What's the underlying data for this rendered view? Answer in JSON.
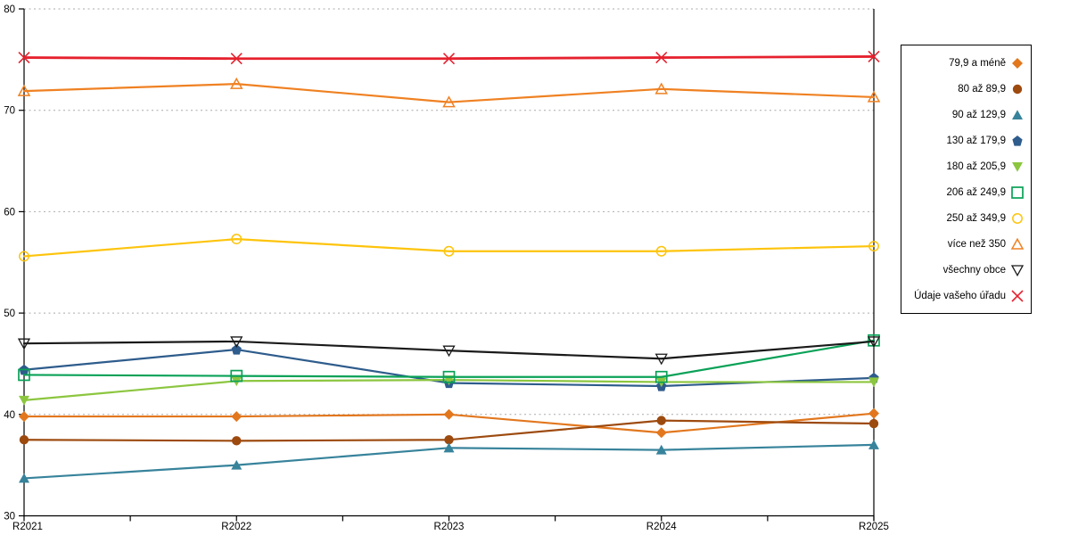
{
  "chart_data": {
    "type": "line",
    "title": "",
    "xlabel": "",
    "ylabel": "",
    "x_categories": [
      "R2021",
      "R2022",
      "R2023",
      "R2024",
      "R2025"
    ],
    "ylim": [
      30,
      80
    ],
    "y_ticks": [
      30,
      40,
      50,
      60,
      70,
      80
    ],
    "grid": "horizontal-dotted",
    "gridline_color": "#a9a9a9",
    "axis_color": "#000000",
    "legend_position": "right-outside",
    "series": [
      {
        "name": "79,9 a méně",
        "marker": "diamond-filled",
        "color": "#e2771e",
        "values": [
          39.8,
          39.8,
          40.0,
          38.2,
          40.1
        ]
      },
      {
        "name": "80 až 89,9",
        "marker": "circle-filled",
        "color": "#9d4a0f",
        "values": [
          37.5,
          37.4,
          37.5,
          39.4,
          39.1
        ]
      },
      {
        "name": "90 až 129,9",
        "marker": "triangle-up-filled",
        "color": "#37839b",
        "values": [
          33.7,
          35.0,
          36.7,
          36.5,
          37.0
        ]
      },
      {
        "name": "130 až 179,9",
        "marker": "pentagon-filled",
        "color": "#2e5c8c",
        "values": [
          44.4,
          46.4,
          43.1,
          42.8,
          43.6
        ]
      },
      {
        "name": "180 až 205,9",
        "marker": "triangle-down-filled",
        "color": "#8cc63f",
        "values": [
          41.4,
          43.3,
          43.4,
          43.2,
          43.2
        ]
      },
      {
        "name": "206 až 249,9",
        "marker": "square-open",
        "color": "#0aa157",
        "values": [
          43.9,
          43.8,
          43.7,
          43.7,
          47.3
        ]
      },
      {
        "name": "250 až 349,9",
        "marker": "circle-open",
        "color": "#fdc40c",
        "values": [
          55.6,
          57.3,
          56.1,
          56.1,
          56.6
        ]
      },
      {
        "name": "více než 350",
        "marker": "triangle-up-open",
        "color": "#ef8122",
        "values": [
          71.9,
          72.6,
          70.8,
          72.1,
          71.3
        ]
      },
      {
        "name": "všechny obce",
        "marker": "triangle-down-open",
        "color": "#1a1a1a",
        "values": [
          47.0,
          47.2,
          46.3,
          45.5,
          47.2
        ]
      },
      {
        "name": "Údaje vašeho úřadu",
        "marker": "x",
        "color": "#e6212e",
        "values": [
          75.2,
          75.1,
          75.1,
          75.2,
          75.3
        ]
      }
    ]
  }
}
